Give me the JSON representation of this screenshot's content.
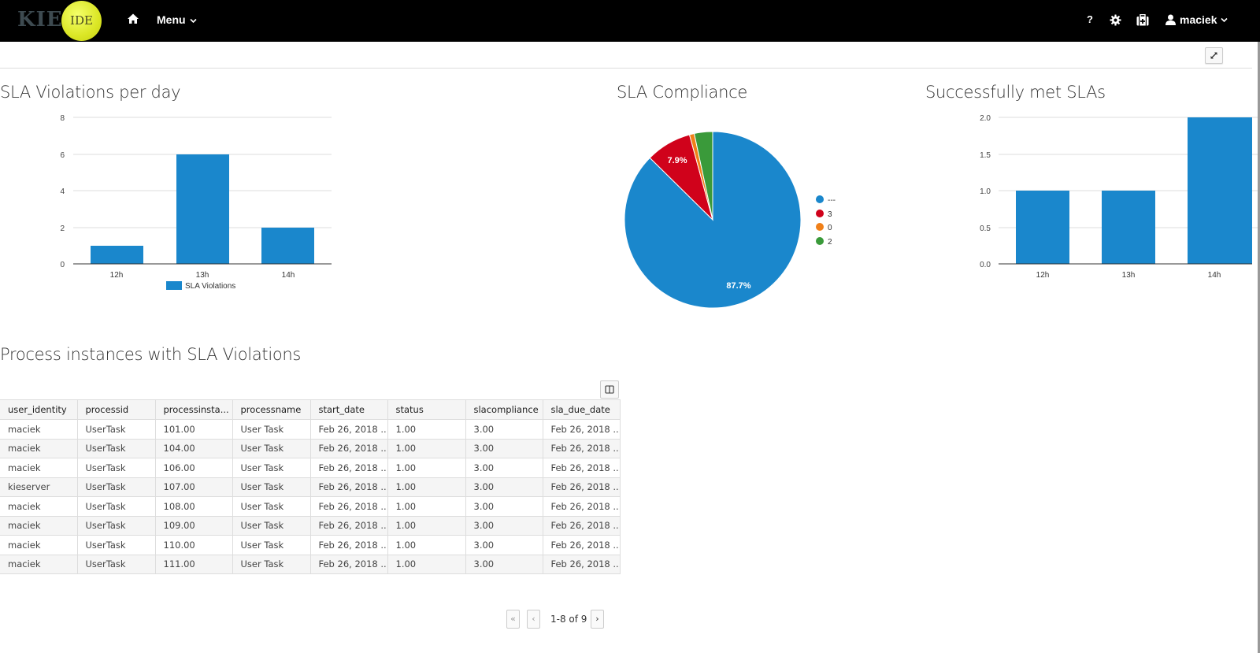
{
  "header": {
    "logo_kie": "KIE",
    "logo_ide": "IDE",
    "menu_label": "Menu",
    "help_label": "?",
    "user_label": "maciek"
  },
  "panels": {
    "violations_title": "SLA Violations per day",
    "compliance_title": "SLA Compliance",
    "met_title": "Successfully met SLAs",
    "table_title": "Process instances with SLA Violations"
  },
  "chart_data": [
    {
      "type": "bar",
      "title": "SLA Violations per day",
      "categories": [
        "12h",
        "13h",
        "14h"
      ],
      "series": [
        {
          "name": "SLA Violations",
          "values": [
            1,
            6,
            2
          ],
          "color": "#1a87cc"
        }
      ],
      "yticks": [
        "0",
        "2",
        "4",
        "6",
        "8"
      ],
      "ylim": [
        0,
        8
      ],
      "legend": {
        "position": "bottom",
        "entries": [
          "SLA Violations"
        ]
      },
      "grid": true
    },
    {
      "type": "pie",
      "title": "SLA Compliance",
      "labels": [
        "---",
        "3",
        "0",
        "2"
      ],
      "values": [
        87.7,
        7.9,
        0.9,
        3.5
      ],
      "colors": [
        "#1a87cc",
        "#d0021b",
        "#f08019",
        "#3a9a3a"
      ],
      "slice_labels": [
        "87.7%",
        "7.9%",
        "",
        ""
      ],
      "legend": {
        "position": "right",
        "entries": [
          "---",
          "3",
          "0",
          "2"
        ]
      }
    },
    {
      "type": "bar",
      "title": "Successfully met SLAs",
      "categories": [
        "12h",
        "13h",
        "14h"
      ],
      "series": [
        {
          "name": "Successfully met SLAs",
          "values": [
            1.0,
            1.0,
            2.0
          ],
          "color": "#1a87cc"
        }
      ],
      "yticks": [
        "0.0",
        "0.5",
        "1.0",
        "1.5",
        "2.0"
      ],
      "ylim": [
        0,
        2
      ],
      "grid": true
    }
  ],
  "table": {
    "columns": [
      "user_identity",
      "processid",
      "processinsta...",
      "processname",
      "start_date",
      "status",
      "slacompliance",
      "sla_due_date"
    ],
    "rows": [
      [
        "maciek",
        "UserTask",
        "101.00",
        "User Task",
        "Feb 26, 2018 ...",
        "1.00",
        "3.00",
        "Feb 26, 2018 ..."
      ],
      [
        "maciek",
        "UserTask",
        "104.00",
        "User Task",
        "Feb 26, 2018 ...",
        "1.00",
        "3.00",
        "Feb 26, 2018 ..."
      ],
      [
        "maciek",
        "UserTask",
        "106.00",
        "User Task",
        "Feb 26, 2018 ...",
        "1.00",
        "3.00",
        "Feb 26, 2018 ..."
      ],
      [
        "kieserver",
        "UserTask",
        "107.00",
        "User Task",
        "Feb 26, 2018 ...",
        "1.00",
        "3.00",
        "Feb 26, 2018 ..."
      ],
      [
        "maciek",
        "UserTask",
        "108.00",
        "User Task",
        "Feb 26, 2018 ...",
        "1.00",
        "3.00",
        "Feb 26, 2018 ..."
      ],
      [
        "maciek",
        "UserTask",
        "109.00",
        "User Task",
        "Feb 26, 2018 ...",
        "1.00",
        "3.00",
        "Feb 26, 2018 ..."
      ],
      [
        "maciek",
        "UserTask",
        "110.00",
        "User Task",
        "Feb 26, 2018 ...",
        "1.00",
        "3.00",
        "Feb 26, 2018 ..."
      ],
      [
        "maciek",
        "UserTask",
        "111.00",
        "User Task",
        "Feb 26, 2018 ...",
        "1.00",
        "3.00",
        "Feb 26, 2018 ..."
      ]
    ]
  },
  "pager": {
    "first": "«",
    "prev": "‹",
    "label": "1-8 of 9",
    "next": "›"
  }
}
